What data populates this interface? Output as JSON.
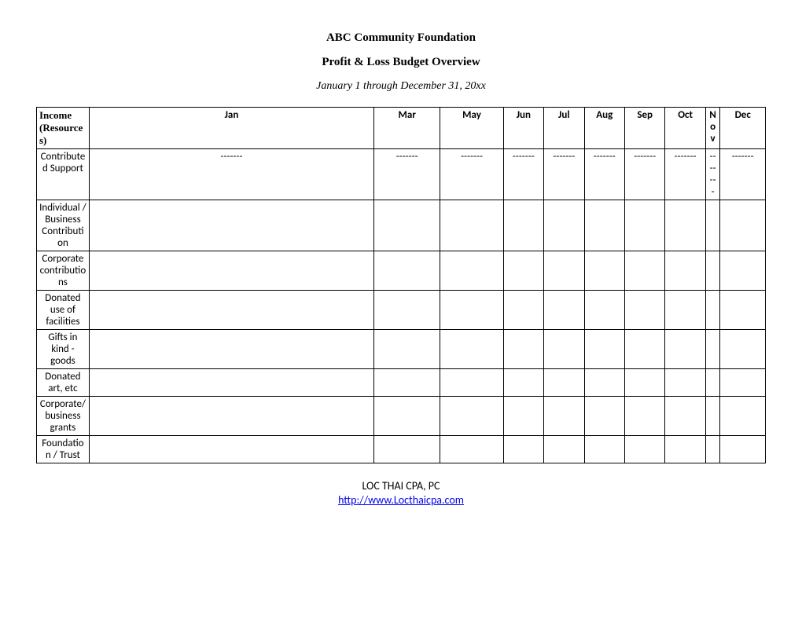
{
  "header": {
    "title": "ABC Community Foundation",
    "subtitle": "Profit & Loss Budget Overview",
    "date_range": "January 1 through December 31, 20xx"
  },
  "table": {
    "columns": [
      "Income (Resources)",
      "Jan",
      "Mar",
      "May",
      "Jun",
      "Jul",
      "Aug",
      "Sep",
      "Oct",
      "Nov",
      "Dec"
    ],
    "rows": [
      {
        "label": "Contributed Support",
        "cells": [
          "-------",
          "-------",
          "-------",
          "-------",
          "-------",
          "-------",
          "-------",
          "-------",
          "-------",
          "-------"
        ]
      },
      {
        "label": "Individual / Business Contribution",
        "cells": [
          "",
          "",
          "",
          "",
          "",
          "",
          "",
          "",
          "",
          ""
        ]
      },
      {
        "label": "Corporate contributions",
        "cells": [
          "",
          "",
          "",
          "",
          "",
          "",
          "",
          "",
          "",
          ""
        ]
      },
      {
        "label": "Donated use of facilities",
        "cells": [
          "",
          "",
          "",
          "",
          "",
          "",
          "",
          "",
          "",
          ""
        ]
      },
      {
        "label": "Gifts in kind - goods",
        "cells": [
          "",
          "",
          "",
          "",
          "",
          "",
          "",
          "",
          "",
          ""
        ]
      },
      {
        "label": "Donated art, etc",
        "cells": [
          "",
          "",
          "",
          "",
          "",
          "",
          "",
          "",
          "",
          ""
        ]
      },
      {
        "label": "Corporate/business grants",
        "cells": [
          "",
          "",
          "",
          "",
          "",
          "",
          "",
          "",
          "",
          ""
        ]
      },
      {
        "label": "Foundation / Trust",
        "cells": [
          "",
          "",
          "",
          "",
          "",
          "",
          "",
          "",
          "",
          ""
        ]
      }
    ]
  },
  "footer": {
    "org": "LOC THAI CPA, PC",
    "link_text": "http://www.Locthaicpa.com",
    "link_href": "http://www.Locthaicpa.com"
  }
}
